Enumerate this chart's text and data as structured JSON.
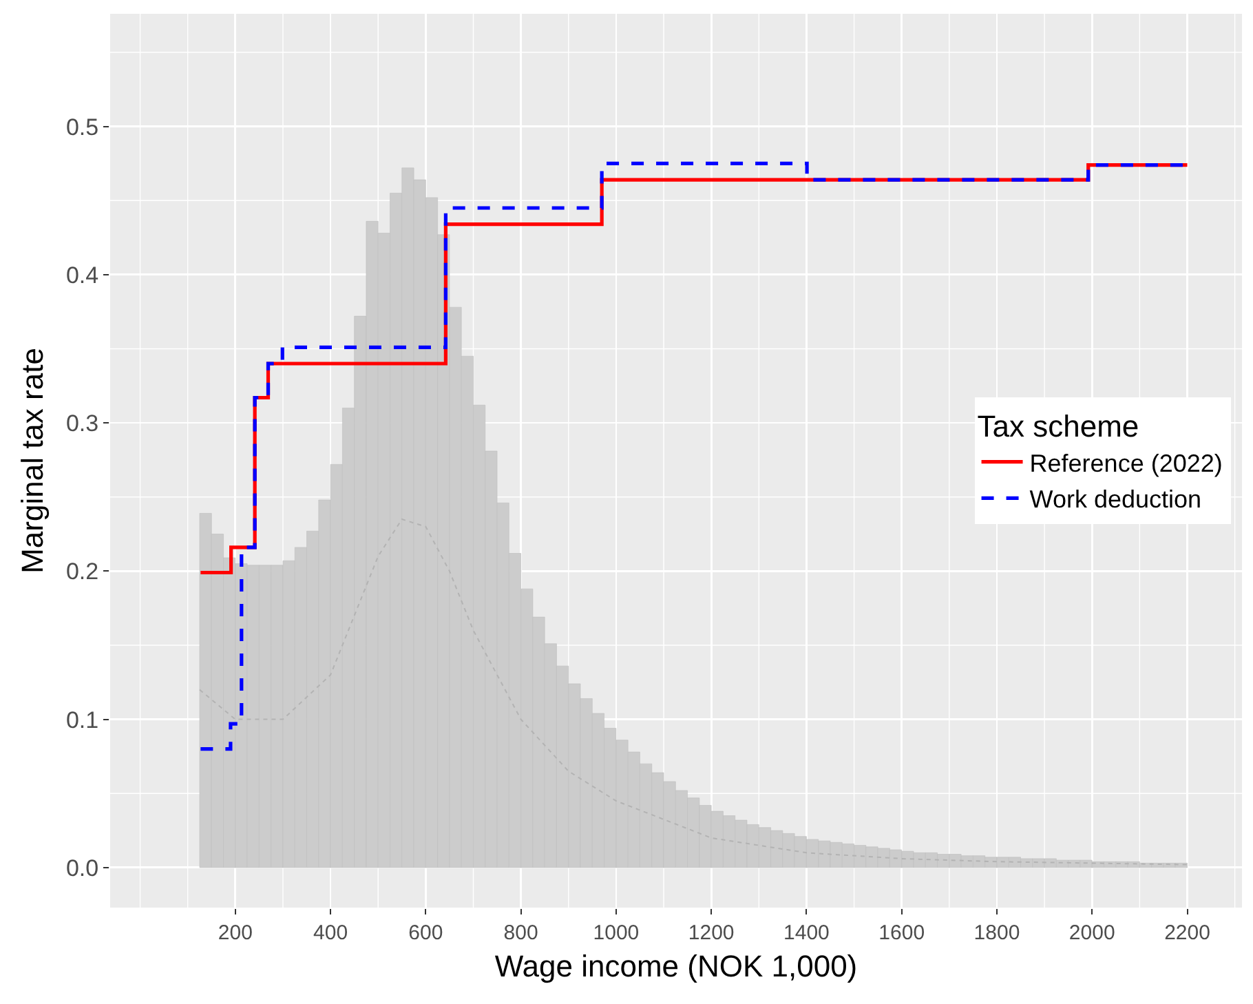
{
  "chart_data": {
    "type": "step",
    "xlabel": "Wage income (NOK 1,000)",
    "ylabel": "Marginal tax rate",
    "legend_title": "Tax scheme",
    "legend": "right",
    "grid": true,
    "xlim": [
      -63,
      2315
    ],
    "ylim": [
      -0.027,
      0.576
    ],
    "xticks": [
      200,
      400,
      600,
      800,
      1000,
      1200,
      1400,
      1600,
      1800,
      2000,
      2200
    ],
    "yticks": [
      {
        "value": 0,
        "label": "0.0"
      },
      {
        "value": 0.1,
        "label": "0.1"
      },
      {
        "value": 0.2,
        "label": "0.2"
      },
      {
        "value": 0.3,
        "label": "0.3"
      },
      {
        "value": 0.4,
        "label": "0.4"
      },
      {
        "value": 0.5,
        "label": "0.5"
      }
    ],
    "series": [
      {
        "type": "histogram",
        "color": "#cccccc",
        "bins": [
          125,
          150,
          175,
          200,
          225,
          250,
          275,
          300,
          325,
          350,
          375,
          400,
          425,
          450,
          475,
          500,
          525,
          550,
          575,
          600,
          625,
          650,
          675,
          700,
          725,
          750,
          775,
          800,
          825,
          850,
          875,
          900,
          925,
          950,
          975,
          1000,
          1025,
          1050,
          1075,
          1100,
          1125,
          1150,
          1175,
          1200,
          1225,
          1250,
          1275,
          1300,
          1325,
          1350,
          1375,
          1400,
          1425,
          1450,
          1475,
          1500,
          1525,
          1550,
          1575,
          1600,
          1625,
          1650,
          1675,
          1700,
          1725,
          1750,
          1775,
          1800,
          1825,
          1850,
          1875,
          1900,
          1925,
          1950,
          1975,
          2000,
          2025,
          2050,
          2075,
          2100,
          2125,
          2150,
          2175,
          2200
        ],
        "values": [
          0.239,
          0.225,
          0.209,
          0.205,
          0.204,
          0.204,
          0.204,
          0.207,
          0.216,
          0.227,
          0.248,
          0.272,
          0.31,
          0.372,
          0.436,
          0.428,
          0.455,
          0.472,
          0.464,
          0.452,
          0.427,
          0.378,
          0.345,
          0.312,
          0.281,
          0.246,
          0.212,
          0.188,
          0.169,
          0.151,
          0.136,
          0.124,
          0.114,
          0.104,
          0.094,
          0.086,
          0.078,
          0.07,
          0.064,
          0.058,
          0.052,
          0.047,
          0.042,
          0.038,
          0.035,
          0.032,
          0.029,
          0.027,
          0.025,
          0.023,
          0.021,
          0.019,
          0.018,
          0.017,
          0.016,
          0.015,
          0.014,
          0.013,
          0.012,
          0.011,
          0.01,
          0.01,
          0.009,
          0.009,
          0.008,
          0.008,
          0.007,
          0.007,
          0.007,
          0.006,
          0.006,
          0.006,
          0.005,
          0.005,
          0.005,
          0.004,
          0.004,
          0.004,
          0.004,
          0.003,
          0.003,
          0.003,
          0.003
        ]
      },
      {
        "type": "line",
        "color": "#b3b3b3",
        "line_style": "dotted",
        "x": [
          125,
          200,
          300,
          400,
          450,
          500,
          550,
          600,
          650,
          700,
          800,
          900,
          1000,
          1200,
          1400,
          1600,
          1800,
          2000,
          2200
        ],
        "values": [
          0.12,
          0.1,
          0.1,
          0.13,
          0.17,
          0.21,
          0.235,
          0.23,
          0.2,
          0.16,
          0.1,
          0.065,
          0.045,
          0.02,
          0.01,
          0.006,
          0.004,
          0.003,
          0.002
        ]
      },
      {
        "name": "Reference (2022)",
        "color": "#ff0000",
        "line_style": "solid",
        "x": [
          127,
          191,
          241,
          269,
          642,
          970,
          1992,
          2200
        ],
        "values": [
          0.199,
          0.216,
          0.317,
          0.34,
          0.434,
          0.464,
          0.474,
          0.474
        ]
      },
      {
        "name": "Work deduction",
        "color": "#0000ff",
        "line_style": "dashed",
        "x": [
          127,
          190,
          213,
          241,
          269,
          299,
          642,
          970,
          1401,
          1992,
          2200
        ],
        "values": [
          0.08,
          0.097,
          0.216,
          0.317,
          0.34,
          0.351,
          0.445,
          0.475,
          0.464,
          0.474,
          0.474
        ]
      }
    ]
  }
}
